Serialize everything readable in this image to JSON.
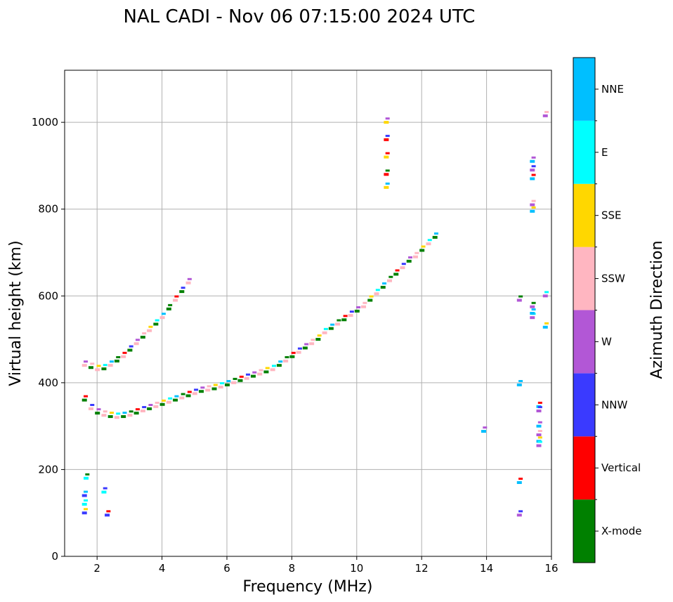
{
  "chart_data": {
    "type": "scatter",
    "title": "NAL CADI - Nov 06 07:15:00 2024 UTC",
    "xlabel": "Frequency (MHz)",
    "ylabel": "Virtual height (km)",
    "xlim": [
      1,
      16
    ],
    "ylim": [
      0,
      1120
    ],
    "xticks": [
      2,
      4,
      6,
      8,
      10,
      12,
      14,
      16
    ],
    "yticks": [
      0,
      200,
      400,
      600,
      800,
      1000
    ],
    "grid": true,
    "colorbar": {
      "label": "Azimuth Direction",
      "categories": [
        {
          "name": "X-mode",
          "color": "#008000"
        },
        {
          "name": "Vertical",
          "color": "#ff0000"
        },
        {
          "name": "NNW",
          "color": "#3a3aff"
        },
        {
          "name": "W",
          "color": "#b257d6"
        },
        {
          "name": "SSW",
          "color": "#ffb6c1"
        },
        {
          "name": "SSE",
          "color": "#ffd700"
        },
        {
          "name": "E",
          "color": "#00ffff"
        },
        {
          "name": "NNE",
          "color": "#00bfff"
        }
      ]
    },
    "series": [
      {
        "name": "F-layer lower trace",
        "points": [
          [
            1.6,
            360
          ],
          [
            1.8,
            340
          ],
          [
            2.0,
            330
          ],
          [
            2.2,
            325
          ],
          [
            2.4,
            322
          ],
          [
            2.6,
            320
          ],
          [
            2.8,
            322
          ],
          [
            3.0,
            325
          ],
          [
            3.2,
            330
          ],
          [
            3.4,
            335
          ],
          [
            3.6,
            340
          ],
          [
            3.8,
            345
          ],
          [
            4.0,
            350
          ],
          [
            4.2,
            355
          ],
          [
            4.4,
            360
          ],
          [
            4.6,
            365
          ],
          [
            4.8,
            370
          ],
          [
            5.0,
            375
          ],
          [
            5.2,
            380
          ],
          [
            5.4,
            383
          ],
          [
            5.6,
            386
          ],
          [
            5.8,
            390
          ],
          [
            6.0,
            395
          ],
          [
            6.2,
            400
          ],
          [
            6.4,
            405
          ],
          [
            6.6,
            410
          ],
          [
            6.8,
            415
          ],
          [
            7.0,
            420
          ],
          [
            7.2,
            425
          ],
          [
            7.4,
            430
          ],
          [
            7.6,
            440
          ],
          [
            7.8,
            450
          ],
          [
            8.0,
            460
          ],
          [
            8.2,
            470
          ],
          [
            8.4,
            480
          ],
          [
            8.6,
            490
          ],
          [
            8.8,
            500
          ],
          [
            9.0,
            515
          ],
          [
            9.2,
            525
          ],
          [
            9.4,
            535
          ],
          [
            9.6,
            545
          ],
          [
            9.8,
            555
          ],
          [
            10.0,
            565
          ],
          [
            10.2,
            575
          ],
          [
            10.4,
            590
          ],
          [
            10.6,
            605
          ],
          [
            10.8,
            620
          ],
          [
            11.0,
            635
          ],
          [
            11.2,
            650
          ],
          [
            11.4,
            665
          ],
          [
            11.6,
            680
          ],
          [
            11.8,
            690
          ],
          [
            12.0,
            705
          ],
          [
            12.2,
            720
          ],
          [
            12.4,
            735
          ]
        ]
      },
      {
        "name": "F-layer upper trace",
        "points": [
          [
            1.6,
            440
          ],
          [
            1.8,
            435
          ],
          [
            2.0,
            430
          ],
          [
            2.2,
            432
          ],
          [
            2.4,
            440
          ],
          [
            2.6,
            450
          ],
          [
            2.8,
            460
          ],
          [
            3.0,
            475
          ],
          [
            3.2,
            490
          ],
          [
            3.4,
            505
          ],
          [
            3.6,
            520
          ],
          [
            3.8,
            535
          ],
          [
            4.0,
            550
          ],
          [
            4.2,
            570
          ],
          [
            4.4,
            590
          ],
          [
            4.6,
            610
          ],
          [
            4.8,
            630
          ]
        ]
      },
      {
        "name": "Low echoes",
        "points": [
          [
            1.6,
            100
          ],
          [
            1.6,
            120
          ],
          [
            1.6,
            140
          ],
          [
            1.65,
            180
          ],
          [
            2.3,
            95
          ],
          [
            2.2,
            148
          ]
        ]
      },
      {
        "name": "Vertical spike near 10.9 MHz",
        "points": [
          [
            10.9,
            850
          ],
          [
            10.9,
            880
          ],
          [
            10.9,
            920
          ],
          [
            10.9,
            960
          ],
          [
            10.9,
            1000
          ]
        ]
      },
      {
        "name": "Interference column 15.2-15.6 MHz",
        "points": [
          [
            15.4,
            870
          ],
          [
            15.4,
            890
          ],
          [
            15.4,
            910
          ],
          [
            15.4,
            810
          ],
          [
            15.4,
            795
          ],
          [
            15.4,
            550
          ],
          [
            15.4,
            560
          ],
          [
            15.4,
            575
          ],
          [
            15.6,
            345
          ],
          [
            15.6,
            335
          ],
          [
            15.6,
            300
          ],
          [
            15.6,
            280
          ],
          [
            15.6,
            265
          ],
          [
            15.6,
            255
          ],
          [
            15.0,
            395
          ],
          [
            15.0,
            590
          ],
          [
            15.0,
            170
          ],
          [
            15.0,
            95
          ],
          [
            13.9,
            288
          ],
          [
            15.8,
            1015
          ],
          [
            15.8,
            528
          ],
          [
            15.8,
            600
          ]
        ]
      }
    ]
  }
}
